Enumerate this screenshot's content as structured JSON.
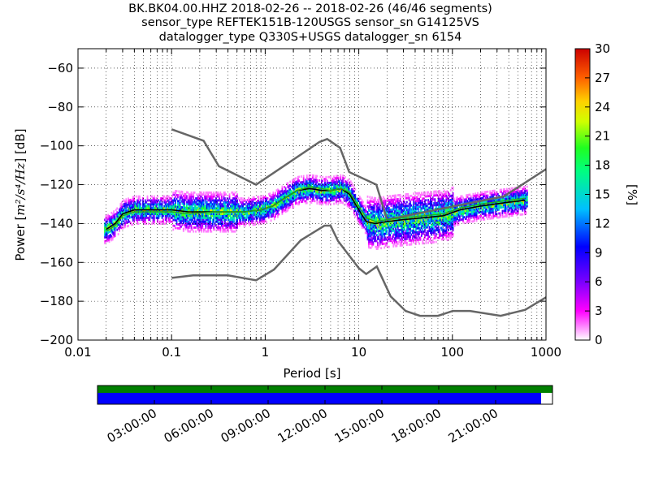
{
  "chart_data": {
    "type": "heatmap",
    "title_lines": [
      "BK.BK04.00.HHZ   2018-02-26 -- 2018-02-26  (46/46 segments)",
      "sensor_type REFTEK151B-120USGS sensor_sn G14125VS",
      "datalogger_type Q330S+USGS datalogger_sn 6154"
    ],
    "xlabel": "Period [s]",
    "ylabel_prefix": "Power [",
    "ylabel_math": "m²/s⁴/Hz",
    "ylabel_suffix": "] [dB]",
    "xscale": "log",
    "xlim": [
      0.01,
      1000
    ],
    "ylim": [
      -200,
      -50
    ],
    "xticks": [
      0.01,
      0.1,
      1,
      10,
      100,
      1000
    ],
    "xtick_labels": [
      "0.01",
      "0.1",
      "1",
      "10",
      "100",
      "1000"
    ],
    "yticks": [
      -200,
      -180,
      -160,
      -140,
      -120,
      -100,
      -80,
      -60
    ],
    "ytick_labels": [
      "−200",
      "−180",
      "−160",
      "−140",
      "−120",
      "−100",
      "−80",
      "−60"
    ],
    "colorbar": {
      "label": "[%]",
      "range": [
        0,
        30
      ],
      "ticks": [
        0,
        3,
        6,
        9,
        12,
        15,
        18,
        21,
        24,
        27,
        30
      ],
      "tick_labels": [
        "0",
        "3",
        "6",
        "9",
        "12",
        "15",
        "18",
        "21",
        "24",
        "27",
        "30"
      ]
    },
    "series": [
      {
        "kind": "noise-model-high",
        "color": "#666666",
        "x": [
          0.1,
          0.22,
          0.32,
          0.8,
          3.8,
          4.6,
          6.3,
          7.9,
          15.4,
          20,
          354.8,
          1000
        ],
        "y": [
          -91.5,
          -97.4,
          -110.5,
          -120,
          -98,
          -96.5,
          -101,
          -113.5,
          -120,
          -138,
          -126,
          -112
        ]
      },
      {
        "kind": "noise-model-low",
        "color": "#666666",
        "x": [
          0.1,
          0.17,
          0.4,
          0.8,
          1.24,
          2.4,
          4.3,
          5,
          6,
          10,
          12,
          15.6,
          21.9,
          31.6,
          45,
          70,
          101,
          154,
          328,
          600,
          1000
        ],
        "y": [
          -168,
          -166.7,
          -166.7,
          -169.2,
          -163.7,
          -148.6,
          -141.1,
          -141.1,
          -149,
          -163,
          -166,
          -162.1,
          -177.5,
          -185,
          -187.5,
          -187.5,
          -185,
          -185,
          -187.5,
          -184.4,
          -178
        ]
      },
      {
        "kind": "mode",
        "color": "#000000",
        "x": [
          0.02,
          0.025,
          0.03,
          0.04,
          0.06,
          0.1,
          0.15,
          0.3,
          0.6,
          0.9,
          1.2,
          1.6,
          2.2,
          3,
          4,
          5,
          6.5,
          8,
          10,
          12,
          15,
          20,
          30,
          50,
          80,
          120,
          200,
          400,
          600
        ],
        "y": [
          -143,
          -140,
          -135,
          -133,
          -133,
          -133,
          -134,
          -134,
          -134,
          -133,
          -131,
          -127,
          -123,
          -122,
          -123,
          -123,
          -122,
          -125,
          -133,
          -139,
          -140,
          -139,
          -138,
          -137,
          -136,
          -133,
          -131,
          -129,
          -128
        ]
      },
      {
        "kind": "mean",
        "color": "#22aa22",
        "x": [
          0.02,
          0.025,
          0.03,
          0.04,
          0.06,
          0.1,
          0.15,
          0.3,
          0.6,
          0.9,
          1.2,
          1.6,
          2.2,
          3,
          4,
          5,
          6.5,
          8,
          10,
          12,
          15,
          20,
          30,
          50,
          80,
          120,
          200,
          400,
          600
        ],
        "y": [
          -144,
          -141,
          -136,
          -134,
          -134,
          -134,
          -135,
          -134,
          -134,
          -133,
          -131,
          -127,
          -123,
          -121,
          -122,
          -123,
          -122,
          -124,
          -131,
          -137,
          -139,
          -138,
          -137,
          -136,
          -135,
          -132,
          -130,
          -128,
          -127
        ]
      }
    ],
    "timeline": {
      "tick_labels": [
        "03:00:00",
        "06:00:00",
        "09:00:00",
        "12:00:00",
        "15:00:00",
        "18:00:00",
        "21:00:00"
      ],
      "tick_hours": [
        3,
        6,
        9,
        12,
        15,
        18,
        21
      ],
      "span_hours": 24,
      "top_bar_color": "#008000",
      "bottom_bar_color": "#0000ff",
      "bottom_bar_coverage": 0.975
    }
  }
}
